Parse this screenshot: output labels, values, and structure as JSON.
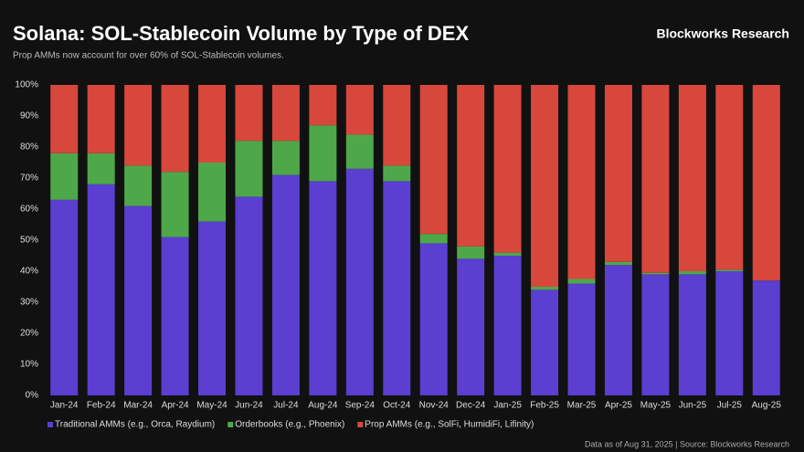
{
  "chart_data": {
    "type": "stacked_bar",
    "title": "Solana: SOL-Stablecoin Volume by Type of DEX",
    "subtitle": "Prop AMMs now account for over 60% of SOL-Stablecoin volumes.",
    "brand": "Blockworks Research",
    "footnote": "Data as of Aug 31, 2025 | Source: Blockworks Research",
    "categories": [
      "Jan-24",
      "Feb-24",
      "Mar-24",
      "Apr-24",
      "May-24",
      "Jun-24",
      "Jul-24",
      "Aug-24",
      "Sep-24",
      "Oct-24",
      "Nov-24",
      "Dec-24",
      "Jan-25",
      "Feb-25",
      "Mar-25",
      "Apr-25",
      "May-25",
      "Jun-25",
      "Jul-25",
      "Aug-25"
    ],
    "series": [
      {
        "name": "Traditional AMMs (e.g., Orca, Raydium)",
        "color": "#5a3fd0",
        "values": [
          63,
          68,
          61,
          51,
          56,
          64,
          71,
          69,
          73,
          69,
          49,
          44,
          45,
          34,
          36,
          42,
          39,
          39,
          40,
          37
        ]
      },
      {
        "name": "Orderbooks (e.g., Phoenix)",
        "color": "#4ea84a",
        "values": [
          15,
          10,
          13,
          21,
          19,
          18,
          11,
          18,
          11,
          5,
          3,
          4,
          1,
          1,
          1.5,
          1,
          0.5,
          1,
          0.5,
          0
        ]
      },
      {
        "name": "Prop AMMs (e.g., SolFi, HumidiFi, Lifinity)",
        "color": "#d8473c",
        "values": [
          22,
          22,
          26,
          28,
          25,
          18,
          18,
          13,
          16,
          26,
          48,
          52,
          54,
          65,
          62.5,
          57,
          60.5,
          60,
          59.5,
          63
        ]
      }
    ],
    "ylim": [
      0,
      100
    ],
    "yticks": [
      {
        "value": 0,
        "label": "0%"
      },
      {
        "value": 10,
        "label": "10%"
      },
      {
        "value": 20,
        "label": "20%"
      },
      {
        "value": 30,
        "label": "30%"
      },
      {
        "value": 40,
        "label": "40%"
      },
      {
        "value": 50,
        "label": "50%"
      },
      {
        "value": 60,
        "label": "60%"
      },
      {
        "value": 70,
        "label": "70%"
      },
      {
        "value": 80,
        "label": "80%"
      },
      {
        "value": 90,
        "label": "90%"
      },
      {
        "value": 100,
        "label": "100%"
      }
    ],
    "grid": false,
    "legend": "bottom"
  }
}
